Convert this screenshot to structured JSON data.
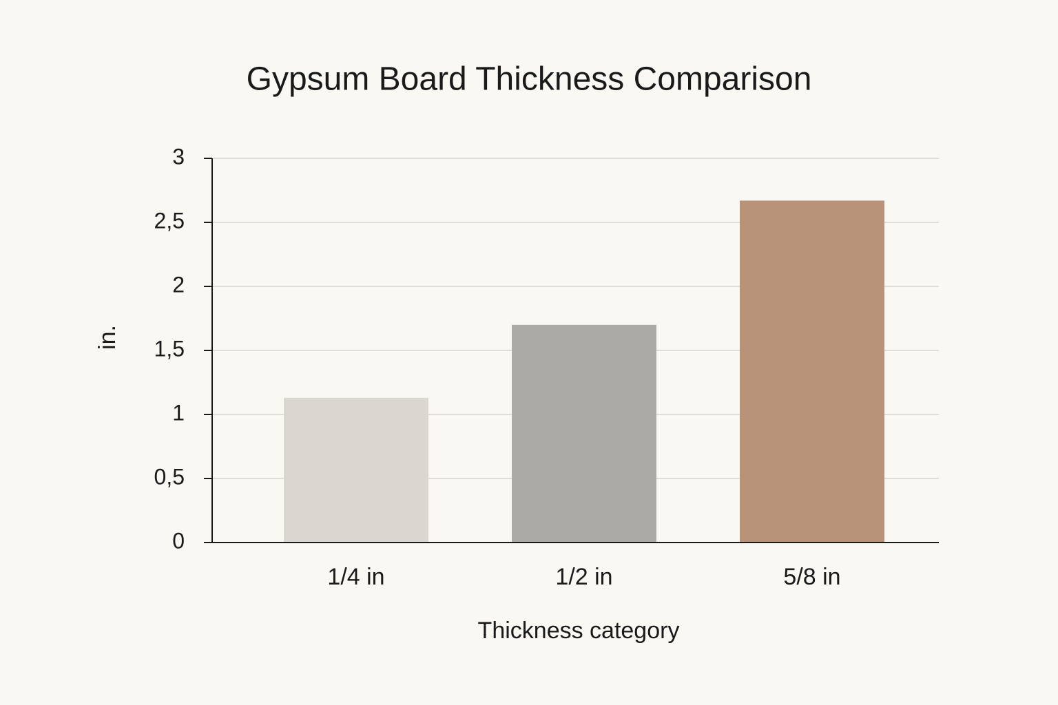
{
  "chart_data": {
    "type": "bar",
    "title": "Gypsum Board Thickness Comparison",
    "x_label": "Thickness category",
    "y_label": "in.",
    "categories": [
      "1/4 in",
      "1/2 in",
      "5/8 in"
    ],
    "values": [
      1.13,
      1.7,
      2.67
    ],
    "colors": [
      "#dad7d1",
      "#abaaa4",
      "#b89279"
    ],
    "ylim": [
      0,
      3
    ],
    "yticks": [
      0,
      {
        "value": 0.5,
        "label": "0,5"
      },
      1,
      {
        "value": 1.5,
        "label": "1,5"
      },
      2,
      {
        "value": 2.5,
        "label": "2,5"
      },
      3
    ],
    "grid": true
  }
}
